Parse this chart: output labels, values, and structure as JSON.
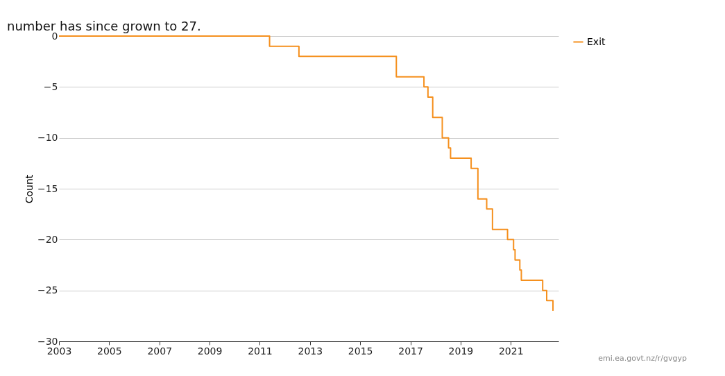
{
  "chart_data": {
    "type": "step",
    "ylabel": "Count",
    "annotations": [
      "number has since grown to 27.",
      "emi.ea.govt.nz/r/gvgyp"
    ],
    "x": [
      2003.0,
      2011.39,
      2012.56,
      2016.44,
      2017.54,
      2017.7,
      2017.89,
      2018.27,
      2018.52,
      2018.6,
      2019.42,
      2019.69,
      2020.04,
      2020.27,
      2020.87,
      2021.11,
      2021.17,
      2021.36,
      2021.42,
      2022.27,
      2022.43,
      2022.68
    ],
    "series": [
      {
        "name": "Exit",
        "color": "#f5901e",
        "values": [
          0,
          -1,
          -2,
          -4,
          -5,
          -6,
          -8,
          -10,
          -11,
          -12,
          -13,
          -16,
          -17,
          -19,
          -20,
          -21,
          -22,
          -23,
          -24,
          -25,
          -26,
          -27
        ]
      }
    ],
    "xlim": [
      2003,
      2022.9
    ],
    "xticks": [
      2003,
      2005,
      2007,
      2009,
      2011,
      2013,
      2015,
      2017,
      2019,
      2021
    ],
    "ylim": [
      -30,
      0
    ],
    "yticks": [
      -30,
      -25,
      -20,
      -15,
      -10,
      -5,
      0
    ],
    "grid": "y",
    "legend": "top right",
    "line_style": "solid",
    "marker": "none"
  }
}
